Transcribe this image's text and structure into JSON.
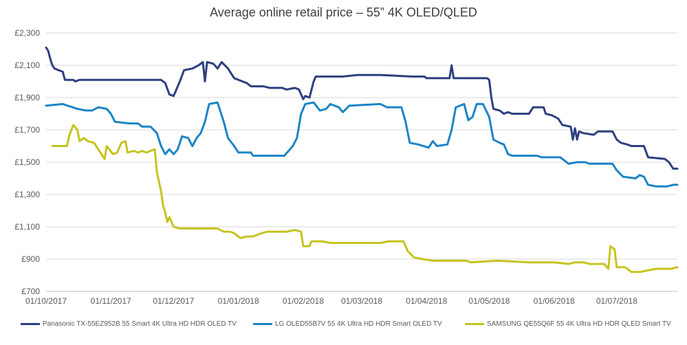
{
  "chart_data": {
    "type": "line",
    "title": "Average online retail price – 55” 4K OLED/QLED",
    "xlabel": "",
    "ylabel": "",
    "x_ticks": [
      "01/10/2017",
      "01/11/2017",
      "01/12/2017",
      "01/01/2018",
      "01/02/2018",
      "01/03/2018",
      "01/04/2018",
      "01/05/2018",
      "01/06/2018",
      "01/07/2018"
    ],
    "y_ticks": [
      "£700",
      "£900",
      "£1,100",
      "£1,300",
      "£1,500",
      "£1,700",
      "£1,900",
      "£2,100",
      "£2,300"
    ],
    "ylim": [
      700,
      2300
    ],
    "grid": "horizontal",
    "legend_position": "bottom",
    "series": [
      {
        "name": "Panasonic TX-55EZ952B 55 Smart 4K Ultra HD HDR OLED TV",
        "color": "#2E3F80",
        "points": [
          [
            "2017-10-01",
            2210
          ],
          [
            "2017-10-02",
            2190
          ],
          [
            "2017-10-03",
            2140
          ],
          [
            "2017-10-04",
            2100
          ],
          [
            "2017-10-05",
            2080
          ],
          [
            "2017-10-07",
            2070
          ],
          [
            "2017-10-09",
            2060
          ],
          [
            "2017-10-10",
            2010
          ],
          [
            "2017-10-14",
            2010
          ],
          [
            "2017-10-15",
            2000
          ],
          [
            "2017-10-17",
            2010
          ],
          [
            "2017-11-25",
            2010
          ],
          [
            "2017-11-27",
            1990
          ],
          [
            "2017-11-29",
            1920
          ],
          [
            "2017-12-01",
            1910
          ],
          [
            "2017-12-02",
            1940
          ],
          [
            "2017-12-04",
            2000
          ],
          [
            "2017-12-06",
            2070
          ],
          [
            "2017-12-10",
            2080
          ],
          [
            "2017-12-13",
            2100
          ],
          [
            "2017-12-15",
            2120
          ],
          [
            "2017-12-16",
            2000
          ],
          [
            "2017-12-17",
            2120
          ],
          [
            "2017-12-20",
            2110
          ],
          [
            "2017-12-22",
            2080
          ],
          [
            "2017-12-24",
            2120
          ],
          [
            "2017-12-27",
            2080
          ],
          [
            "2017-12-30",
            2020
          ],
          [
            "2018-01-03",
            2000
          ],
          [
            "2018-01-05",
            1990
          ],
          [
            "2018-01-07",
            1970
          ],
          [
            "2018-01-13",
            1970
          ],
          [
            "2018-01-16",
            1960
          ],
          [
            "2018-01-22",
            1960
          ],
          [
            "2018-01-24",
            1950
          ],
          [
            "2018-01-28",
            1960
          ],
          [
            "2018-01-30",
            1950
          ],
          [
            "2018-01-31",
            1920
          ],
          [
            "2018-02-01",
            1890
          ],
          [
            "2018-02-02",
            1910
          ],
          [
            "2018-02-04",
            1900
          ],
          [
            "2018-02-06",
            2000
          ],
          [
            "2018-02-07",
            2030
          ],
          [
            "2018-02-20",
            2030
          ],
          [
            "2018-02-27",
            2040
          ],
          [
            "2018-03-10",
            2040
          ],
          [
            "2018-03-25",
            2030
          ],
          [
            "2018-03-31",
            2030
          ],
          [
            "2018-04-01",
            2020
          ],
          [
            "2018-04-12",
            2020
          ],
          [
            "2018-04-13",
            2100
          ],
          [
            "2018-04-14",
            2020
          ],
          [
            "2018-04-30",
            2020
          ],
          [
            "2018-05-01",
            2010
          ],
          [
            "2018-05-02",
            1900
          ],
          [
            "2018-05-03",
            1830
          ],
          [
            "2018-05-06",
            1820
          ],
          [
            "2018-05-08",
            1800
          ],
          [
            "2018-05-10",
            1810
          ],
          [
            "2018-05-12",
            1800
          ],
          [
            "2018-05-20",
            1800
          ],
          [
            "2018-05-22",
            1840
          ],
          [
            "2018-05-27",
            1840
          ],
          [
            "2018-05-28",
            1800
          ],
          [
            "2018-05-31",
            1790
          ],
          [
            "2018-06-03",
            1770
          ],
          [
            "2018-06-05",
            1730
          ],
          [
            "2018-06-09",
            1720
          ],
          [
            "2018-06-10",
            1640
          ],
          [
            "2018-06-11",
            1710
          ],
          [
            "2018-06-12",
            1640
          ],
          [
            "2018-06-13",
            1690
          ],
          [
            "2018-06-15",
            1680
          ],
          [
            "2018-06-20",
            1670
          ],
          [
            "2018-06-22",
            1690
          ],
          [
            "2018-06-29",
            1690
          ],
          [
            "2018-07-01",
            1640
          ],
          [
            "2018-07-03",
            1620
          ],
          [
            "2018-07-06",
            1610
          ],
          [
            "2018-07-08",
            1600
          ],
          [
            "2018-07-14",
            1600
          ],
          [
            "2018-07-16",
            1530
          ],
          [
            "2018-07-24",
            1520
          ],
          [
            "2018-07-26",
            1500
          ],
          [
            "2018-07-28",
            1460
          ],
          [
            "2018-07-30",
            1460
          ]
        ]
      },
      {
        "name": "LG OLED55B7V 55 4K Ultra HD HDR Smart OLED TV",
        "color": "#1C84C6",
        "points": [
          [
            "2017-10-01",
            1850
          ],
          [
            "2017-10-09",
            1860
          ],
          [
            "2017-10-16",
            1830
          ],
          [
            "2017-10-20",
            1820
          ],
          [
            "2017-10-23",
            1820
          ],
          [
            "2017-10-26",
            1840
          ],
          [
            "2017-10-30",
            1830
          ],
          [
            "2017-11-01",
            1800
          ],
          [
            "2017-11-03",
            1750
          ],
          [
            "2017-11-10",
            1740
          ],
          [
            "2017-11-14",
            1740
          ],
          [
            "2017-11-16",
            1720
          ],
          [
            "2017-11-20",
            1720
          ],
          [
            "2017-11-23",
            1680
          ],
          [
            "2017-11-25",
            1600
          ],
          [
            "2017-11-27",
            1550
          ],
          [
            "2017-11-29",
            1580
          ],
          [
            "2017-12-01",
            1550
          ],
          [
            "2017-12-03",
            1580
          ],
          [
            "2017-12-05",
            1660
          ],
          [
            "2017-12-08",
            1650
          ],
          [
            "2017-12-10",
            1600
          ],
          [
            "2017-12-12",
            1650
          ],
          [
            "2017-12-14",
            1680
          ],
          [
            "2017-12-16",
            1750
          ],
          [
            "2017-12-18",
            1860
          ],
          [
            "2017-12-22",
            1870
          ],
          [
            "2017-12-25",
            1750
          ],
          [
            "2017-12-27",
            1650
          ],
          [
            "2017-12-30",
            1600
          ],
          [
            "2018-01-01",
            1560
          ],
          [
            "2018-01-07",
            1560
          ],
          [
            "2018-01-08",
            1540
          ],
          [
            "2018-01-23",
            1540
          ],
          [
            "2018-01-25",
            1570
          ],
          [
            "2018-01-27",
            1600
          ],
          [
            "2018-01-29",
            1650
          ],
          [
            "2018-01-31",
            1800
          ],
          [
            "2018-02-02",
            1860
          ],
          [
            "2018-02-06",
            1870
          ],
          [
            "2018-02-09",
            1820
          ],
          [
            "2018-02-12",
            1830
          ],
          [
            "2018-02-14",
            1860
          ],
          [
            "2018-02-18",
            1840
          ],
          [
            "2018-02-20",
            1810
          ],
          [
            "2018-02-23",
            1850
          ],
          [
            "2018-03-10",
            1860
          ],
          [
            "2018-03-13",
            1840
          ],
          [
            "2018-03-20",
            1840
          ],
          [
            "2018-03-22",
            1750
          ],
          [
            "2018-03-24",
            1620
          ],
          [
            "2018-03-28",
            1610
          ],
          [
            "2018-04-02",
            1590
          ],
          [
            "2018-04-04",
            1630
          ],
          [
            "2018-04-06",
            1600
          ],
          [
            "2018-04-11",
            1610
          ],
          [
            "2018-04-13",
            1700
          ],
          [
            "2018-04-15",
            1840
          ],
          [
            "2018-04-19",
            1860
          ],
          [
            "2018-04-21",
            1760
          ],
          [
            "2018-04-23",
            1780
          ],
          [
            "2018-04-25",
            1860
          ],
          [
            "2018-04-28",
            1860
          ],
          [
            "2018-05-01",
            1780
          ],
          [
            "2018-05-03",
            1640
          ],
          [
            "2018-05-06",
            1620
          ],
          [
            "2018-05-08",
            1610
          ],
          [
            "2018-05-10",
            1550
          ],
          [
            "2018-05-12",
            1540
          ],
          [
            "2018-05-24",
            1540
          ],
          [
            "2018-05-26",
            1530
          ],
          [
            "2018-06-04",
            1530
          ],
          [
            "2018-06-06",
            1510
          ],
          [
            "2018-06-08",
            1490
          ],
          [
            "2018-06-12",
            1500
          ],
          [
            "2018-06-16",
            1500
          ],
          [
            "2018-06-18",
            1490
          ],
          [
            "2018-06-29",
            1490
          ],
          [
            "2018-07-01",
            1450
          ],
          [
            "2018-07-04",
            1410
          ],
          [
            "2018-07-10",
            1400
          ],
          [
            "2018-07-12",
            1420
          ],
          [
            "2018-07-14",
            1410
          ],
          [
            "2018-07-16",
            1360
          ],
          [
            "2018-07-20",
            1350
          ],
          [
            "2018-07-25",
            1350
          ],
          [
            "2018-07-28",
            1360
          ],
          [
            "2018-07-30",
            1360
          ]
        ]
      },
      {
        "name": "SAMSUNG QE55Q6F 55 4K Ultra HD HDR QLED Smart TV",
        "color": "#C5C41E",
        "points": [
          [
            "2017-10-04",
            1600
          ],
          [
            "2017-10-11",
            1600
          ],
          [
            "2017-10-12",
            1660
          ],
          [
            "2017-10-14",
            1730
          ],
          [
            "2017-10-16",
            1700
          ],
          [
            "2017-10-17",
            1630
          ],
          [
            "2017-10-19",
            1650
          ],
          [
            "2017-10-21",
            1630
          ],
          [
            "2017-10-24",
            1620
          ],
          [
            "2017-10-27",
            1560
          ],
          [
            "2017-10-29",
            1520
          ],
          [
            "2017-10-30",
            1600
          ],
          [
            "2017-11-02",
            1550
          ],
          [
            "2017-11-04",
            1560
          ],
          [
            "2017-11-06",
            1620
          ],
          [
            "2017-11-08",
            1630
          ],
          [
            "2017-11-09",
            1560
          ],
          [
            "2017-11-12",
            1570
          ],
          [
            "2017-11-14",
            1560
          ],
          [
            "2017-11-16",
            1570
          ],
          [
            "2017-11-18",
            1560
          ],
          [
            "2017-11-22",
            1580
          ],
          [
            "2017-11-23",
            1440
          ],
          [
            "2017-11-24",
            1380
          ],
          [
            "2017-11-25",
            1320
          ],
          [
            "2017-11-26",
            1230
          ],
          [
            "2017-11-27",
            1190
          ],
          [
            "2017-11-28",
            1130
          ],
          [
            "2017-11-29",
            1160
          ],
          [
            "2017-12-01",
            1100
          ],
          [
            "2017-12-04",
            1090
          ],
          [
            "2017-12-15",
            1090
          ],
          [
            "2017-12-22",
            1090
          ],
          [
            "2017-12-25",
            1070
          ],
          [
            "2017-12-28",
            1070
          ],
          [
            "2017-12-30",
            1060
          ],
          [
            "2018-01-02",
            1030
          ],
          [
            "2018-01-05",
            1040
          ],
          [
            "2018-01-08",
            1040
          ],
          [
            "2018-01-12",
            1060
          ],
          [
            "2018-01-15",
            1070
          ],
          [
            "2018-01-20",
            1070
          ],
          [
            "2018-01-24",
            1070
          ],
          [
            "2018-01-28",
            1080
          ],
          [
            "2018-01-31",
            1070
          ],
          [
            "2018-02-01",
            980
          ],
          [
            "2018-02-04",
            980
          ],
          [
            "2018-02-05",
            1010
          ],
          [
            "2018-02-10",
            1010
          ],
          [
            "2018-02-14",
            1000
          ],
          [
            "2018-02-28",
            1000
          ],
          [
            "2018-03-10",
            1000
          ],
          [
            "2018-03-14",
            1010
          ],
          [
            "2018-03-21",
            1010
          ],
          [
            "2018-03-23",
            950
          ],
          [
            "2018-03-26",
            910
          ],
          [
            "2018-03-30",
            900
          ],
          [
            "2018-04-04",
            890
          ],
          [
            "2018-04-20",
            890
          ],
          [
            "2018-04-22",
            880
          ],
          [
            "2018-05-05",
            890
          ],
          [
            "2018-05-20",
            880
          ],
          [
            "2018-06-01",
            880
          ],
          [
            "2018-06-08",
            870
          ],
          [
            "2018-06-11",
            880
          ],
          [
            "2018-06-15",
            880
          ],
          [
            "2018-06-18",
            870
          ],
          [
            "2018-06-25",
            870
          ],
          [
            "2018-06-27",
            840
          ],
          [
            "2018-06-28",
            980
          ],
          [
            "2018-06-30",
            960
          ],
          [
            "2018-07-01",
            850
          ],
          [
            "2018-07-05",
            850
          ],
          [
            "2018-07-08",
            820
          ],
          [
            "2018-07-12",
            820
          ],
          [
            "2018-07-16",
            830
          ],
          [
            "2018-07-20",
            840
          ],
          [
            "2018-07-23",
            840
          ],
          [
            "2018-07-27",
            840
          ],
          [
            "2018-07-30",
            850
          ]
        ]
      }
    ]
  }
}
